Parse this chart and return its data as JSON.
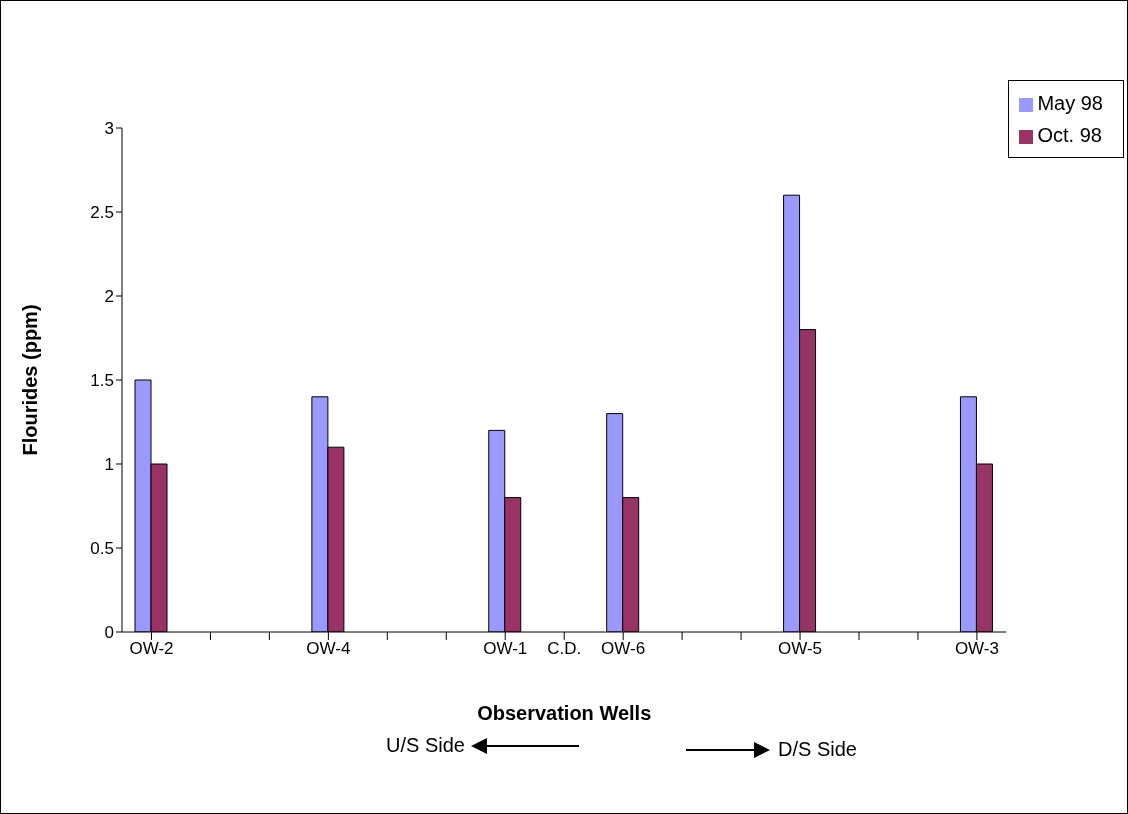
{
  "chart_data": {
    "type": "bar",
    "xlabel": "Observation Wells",
    "ylabel": "Flourides (ppm)",
    "categories": [
      "OW-2",
      null,
      null,
      "OW-4",
      null,
      null,
      "OW-1",
      "C.D.",
      "OW-6",
      null,
      null,
      "OW-5",
      null,
      null,
      "OW-3"
    ],
    "series": [
      {
        "name": "May 98",
        "color": "#9999ff",
        "values": [
          1.5,
          null,
          null,
          1.4,
          null,
          null,
          1.2,
          null,
          1.3,
          null,
          null,
          2.6,
          null,
          null,
          1.4
        ]
      },
      {
        "name": "Oct. 98",
        "color": "#993366",
        "values": [
          1.0,
          null,
          null,
          1.1,
          null,
          null,
          0.8,
          null,
          0.8,
          null,
          null,
          1.8,
          null,
          null,
          1.0
        ]
      }
    ],
    "ylim": [
      0,
      3
    ],
    "yticks": [
      0,
      0.5,
      1,
      1.5,
      2,
      2.5,
      3
    ],
    "grid": false,
    "legend": "top right",
    "annotations": [
      "U/S Side",
      "D/S Side"
    ]
  }
}
